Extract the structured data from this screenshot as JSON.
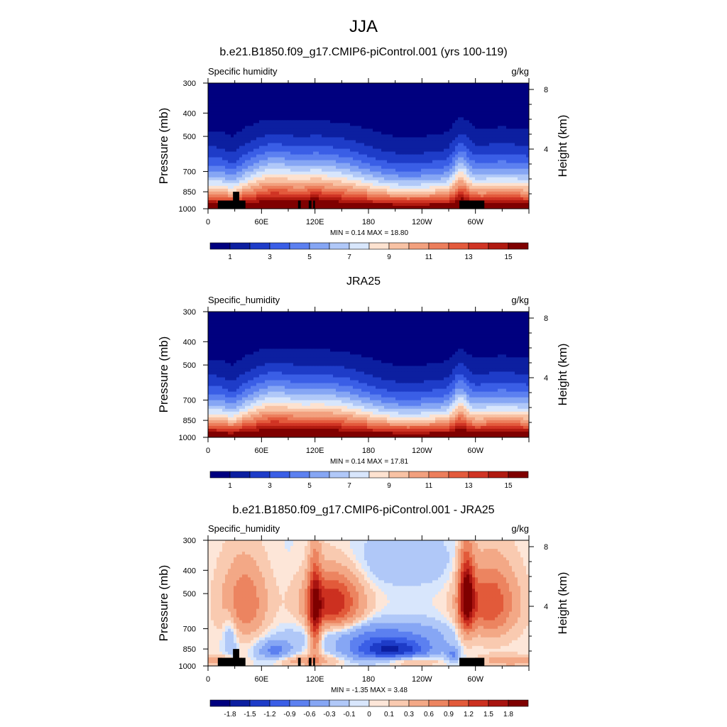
{
  "page": {
    "title": "JJA"
  },
  "colors": {
    "absolute_scale": [
      "#00007f",
      "#0c1fa0",
      "#1e3cc8",
      "#3a5ee6",
      "#5c80f0",
      "#86a6f4",
      "#b0c8f8",
      "#d8e6fc",
      "#fde2d0",
      "#f8c2a4",
      "#f2a07e",
      "#ec7e5c",
      "#e35a3c",
      "#d03424",
      "#b01a10",
      "#7f0000"
    ],
    "difference_scale": [
      "#00007f",
      "#0c1fa0",
      "#1e3cc8",
      "#3a5ee6",
      "#5c80f0",
      "#86a6f4",
      "#b0c8f8",
      "#d8e6fc",
      "#fde6d8",
      "#f9cab0",
      "#f3a886",
      "#ec8460",
      "#e25a3a",
      "#cc3020",
      "#a81410",
      "#7f0000"
    ],
    "terrain": "#000000"
  },
  "chart_data": [
    {
      "type": "contour",
      "title": "b.e21.B1850.f09_g17.CMIP6-piControl.001 (yrs 100-119)",
      "left_label": "Specific humidity",
      "right_label": "g/kg",
      "ylabel": "Pressure (mb)",
      "ylabel_right": "Height (km)",
      "x_ticks": [
        "0",
        "60E",
        "120E",
        "180",
        "120W",
        "60W"
      ],
      "y_ticks": [
        "300",
        "400",
        "500",
        "700",
        "850",
        "1000"
      ],
      "height_ticks": [
        "8",
        "4"
      ],
      "xlim_deg": [
        0,
        360
      ],
      "ylim_mb": [
        1000,
        300
      ],
      "stats": "MIN =   0.14  MAX =  18.80",
      "colorbar_labels": [
        "1",
        "3",
        "5",
        "7",
        "9",
        "11",
        "13",
        "15"
      ],
      "colorbar_levels": [
        1,
        2,
        3,
        4,
        5,
        6,
        7,
        8,
        9,
        10,
        11,
        12,
        13,
        14,
        15
      ],
      "terrain": true
    },
    {
      "type": "contour",
      "title": "JRA25",
      "left_label": "Specific_humidity",
      "right_label": "g/kg",
      "ylabel": "Pressure (mb)",
      "ylabel_right": "Height (km)",
      "x_ticks": [
        "0",
        "60E",
        "120E",
        "180",
        "120W",
        "60W"
      ],
      "y_ticks": [
        "300",
        "400",
        "500",
        "700",
        "850",
        "1000"
      ],
      "height_ticks": [
        "8",
        "4"
      ],
      "xlim_deg": [
        0,
        360
      ],
      "ylim_mb": [
        1000,
        300
      ],
      "stats": "MIN =   0.14  MAX =  17.81",
      "colorbar_labels": [
        "1",
        "3",
        "5",
        "7",
        "9",
        "11",
        "13",
        "15"
      ],
      "colorbar_levels": [
        1,
        2,
        3,
        4,
        5,
        6,
        7,
        8,
        9,
        10,
        11,
        12,
        13,
        14,
        15
      ],
      "terrain": false
    },
    {
      "type": "contour",
      "title": "b.e21.B1850.f09_g17.CMIP6-piControl.001 - JRA25",
      "left_label": "Specific_humidity",
      "right_label": "g/kg",
      "ylabel": "Pressure (mb)",
      "ylabel_right": "Height (km)",
      "x_ticks": [
        "0",
        "60E",
        "120E",
        "180",
        "120W",
        "60W"
      ],
      "y_ticks": [
        "300",
        "400",
        "500",
        "700",
        "850",
        "1000"
      ],
      "height_ticks": [
        "8",
        "4"
      ],
      "xlim_deg": [
        0,
        360
      ],
      "ylim_mb": [
        1000,
        300
      ],
      "stats": "MIN =  -1.35  MAX =   3.48",
      "colorbar_labels": [
        "-1.8",
        "-1.5",
        "-1.2",
        "-0.9",
        "-0.6",
        "-0.3",
        "-0.1",
        "0",
        "0.1",
        "0.3",
        "0.6",
        "0.9",
        "1.2",
        "1.5",
        "1.8"
      ],
      "colorbar_levels": [
        -1.8,
        -1.5,
        -1.2,
        -0.9,
        -0.6,
        -0.3,
        -0.1,
        0,
        0.1,
        0.3,
        0.6,
        0.9,
        1.2,
        1.5,
        1.8
      ],
      "terrain": true
    }
  ]
}
